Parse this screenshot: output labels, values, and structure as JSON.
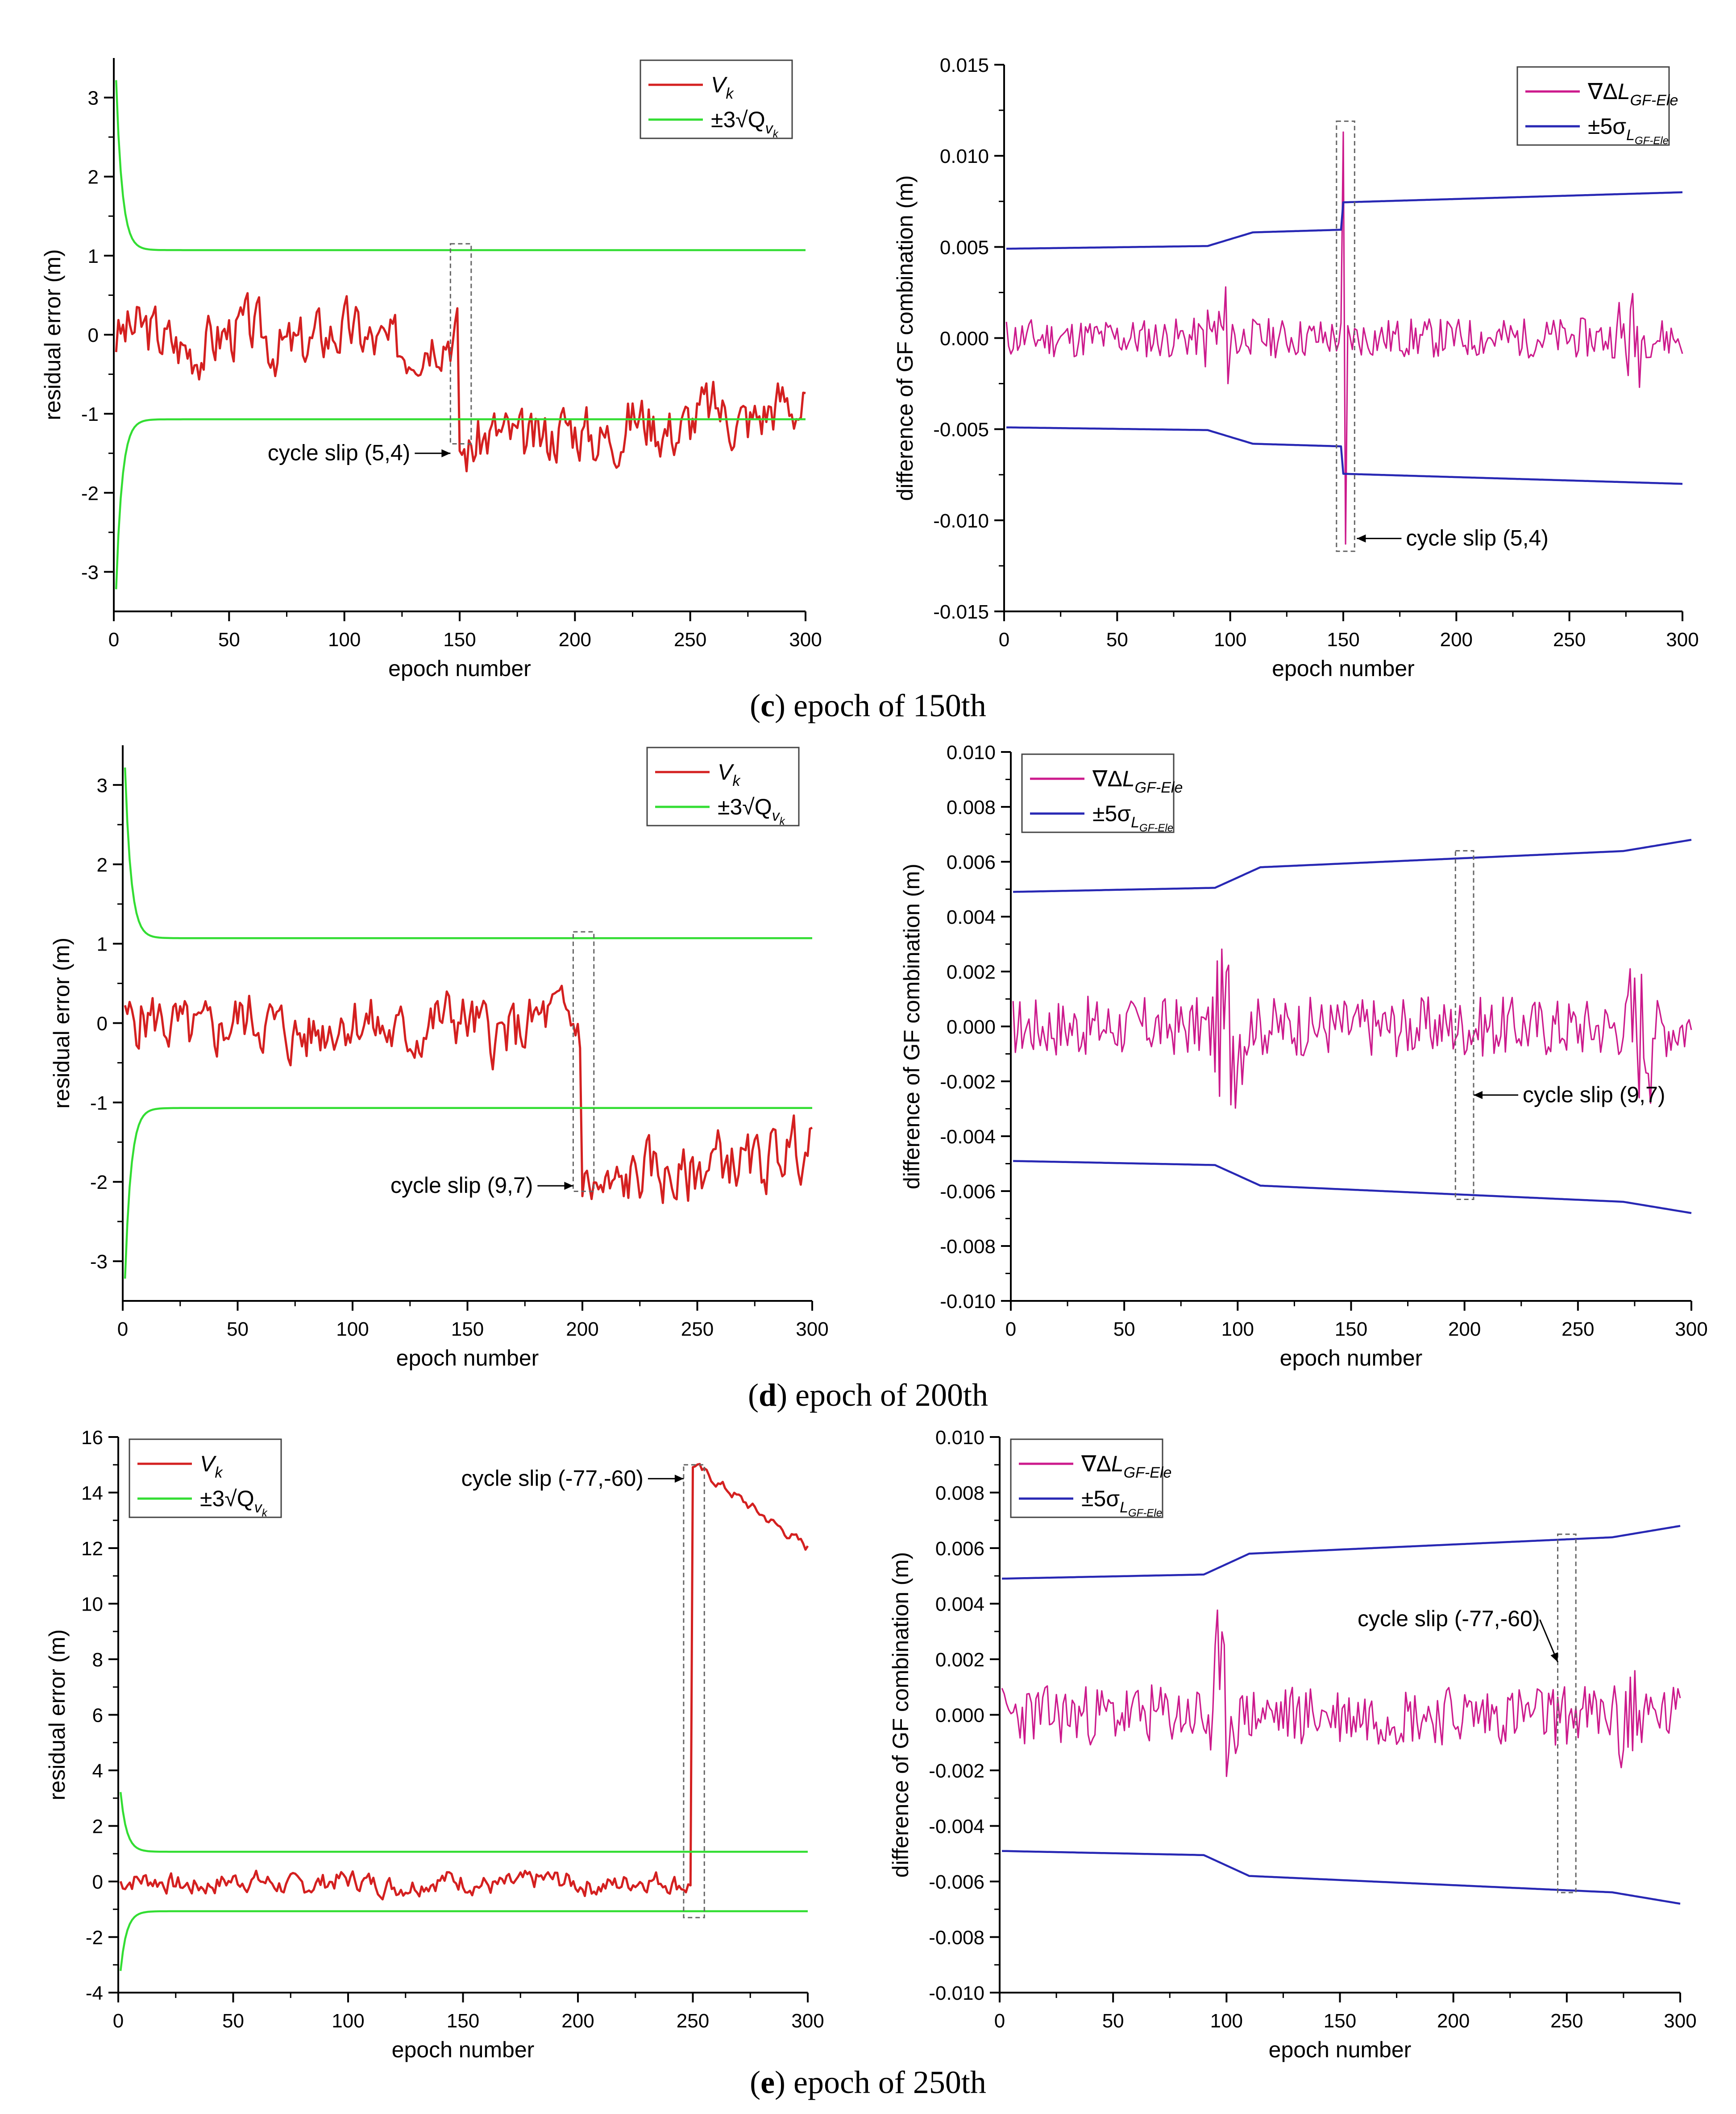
{
  "colors": {
    "red": "#d42020",
    "green": "#33dd33",
    "magenta": "#cc1a8c",
    "blue": "#2828b4"
  },
  "captions": [
    {
      "pre": "(",
      "letter": "c",
      "post": ") epoch of 150th"
    },
    {
      "pre": "(",
      "letter": "d",
      "post": ") epoch of 200th"
    },
    {
      "pre": "(",
      "letter": "e",
      "post": ") epoch of 250th"
    }
  ],
  "chart_data": [
    {
      "id": "c-left",
      "type": "line",
      "xlabel": "epoch number",
      "ylabel": "residual error (m)",
      "xlim": [
        0,
        300
      ],
      "ylim": [
        -3.5,
        3.5
      ],
      "xticks": [
        0,
        50,
        100,
        150,
        200,
        250,
        300
      ],
      "yticks": [
        -3,
        -2,
        -1,
        0,
        1,
        2,
        3
      ],
      "legend": {
        "position": "top-right",
        "entries": [
          {
            "text": "V",
            "sub": "k"
          },
          {
            "text": "±3√Q",
            "sub": "v",
            "subsub": "k"
          }
        ]
      },
      "slip_epoch": 150,
      "jump": -1.35,
      "box": {
        "x": [
          146,
          155
        ],
        "y": [
          -1.38,
          1.15
        ]
      },
      "annotation": {
        "text": "cycle slip (5,4)",
        "side": "left",
        "x": 146,
        "y": -1.5
      },
      "series": [
        {
          "name": "V_k",
          "kind": "noise",
          "color": "red",
          "base": -0.05,
          "amp": 0.55,
          "drift": -0.4,
          "seed": 3
        },
        {
          "name": "+3√Q",
          "kind": "bound",
          "color": "green",
          "sign": 1,
          "limit": 1.07,
          "extra": 2.15
        },
        {
          "name": "-3√Q",
          "kind": "bound",
          "color": "green",
          "sign": -1,
          "limit": 1.07,
          "extra": 2.15
        }
      ]
    },
    {
      "id": "c-right",
      "type": "line",
      "xlabel": "epoch number",
      "ylabel": "difference of GF combination (m)",
      "xlim": [
        0,
        300
      ],
      "ylim": [
        -0.015,
        0.015
      ],
      "xticks": [
        0,
        50,
        100,
        150,
        200,
        250,
        300
      ],
      "yticks": [
        "-0.015",
        "-0.010",
        "-0.005",
        "0.000",
        "0.005",
        "0.010",
        "0.015"
      ],
      "legend": {
        "position": "top-right",
        "entries": [
          {
            "text": "∇ΔL",
            "sub": "GF-Ele"
          },
          {
            "text": "±5σ",
            "sub": "L",
            "subsub": "GF-Ele"
          }
        ]
      },
      "slip_epoch": 150,
      "spike": 0.0113,
      "box": {
        "x": [
          147,
          155
        ],
        "y": [
          -0.0117,
          0.0119
        ]
      },
      "annotation": {
        "text": "cycle slip (5,4)",
        "side": "right",
        "x": 156,
        "y": -0.011
      },
      "series": [
        {
          "name": "∇ΔL_GF-Ele",
          "kind": "gfnoise",
          "color": "magenta",
          "amp": 0.0011,
          "burst": 0.0038,
          "seed": 11
        },
        {
          "name": "+5σ",
          "kind": "sigma",
          "color": "blue",
          "sign": 1,
          "start": 0.0049,
          "step_at": 150,
          "step": 0.0015,
          "end": 0.008
        },
        {
          "name": "-5σ",
          "kind": "sigma",
          "color": "blue",
          "sign": -1,
          "start": 0.0049,
          "step_at": 150,
          "step": 0.0015,
          "end": 0.008
        }
      ]
    },
    {
      "id": "d-left",
      "type": "line",
      "xlabel": "epoch number",
      "ylabel": "residual error (m)",
      "xlim": [
        0,
        300
      ],
      "ylim": [
        -3.5,
        3.5
      ],
      "xticks": [
        0,
        50,
        100,
        150,
        200,
        250,
        300
      ],
      "yticks": [
        -3,
        -2,
        -1,
        0,
        1,
        2,
        3
      ],
      "legend": {
        "position": "top-right",
        "entries": [
          {
            "text": "V",
            "sub": "k"
          },
          {
            "text": "±3√Q",
            "sub": "v",
            "subsub": "k"
          }
        ]
      },
      "slip_epoch": 200,
      "jump": -2.05,
      "box": {
        "x": [
          196,
          205
        ],
        "y": [
          -2.12,
          1.15
        ]
      },
      "annotation": {
        "text": "cycle slip (9,7)",
        "side": "left",
        "x": 196,
        "y": -2.05
      },
      "series": [
        {
          "name": "V_k",
          "kind": "noise",
          "color": "red",
          "base": -0.05,
          "amp": 0.55,
          "drift": 0.55,
          "seed": 5
        },
        {
          "name": "+3√Q",
          "kind": "bound",
          "color": "green",
          "sign": 1,
          "limit": 1.07,
          "extra": 2.15
        },
        {
          "name": "-3√Q",
          "kind": "bound",
          "color": "green",
          "sign": -1,
          "limit": 1.07,
          "extra": 2.15
        }
      ]
    },
    {
      "id": "d-right",
      "type": "line",
      "xlabel": "epoch number",
      "ylabel": "difference of GF combination (m)",
      "xlim": [
        0,
        300
      ],
      "ylim": [
        -0.01,
        0.01
      ],
      "xticks": [
        0,
        50,
        100,
        150,
        200,
        250,
        300
      ],
      "yticks": [
        "-0.010",
        "-0.008",
        "-0.006",
        "-0.004",
        "-0.002",
        "0.000",
        "0.002",
        "0.004",
        "0.006",
        "0.008",
        "0.010"
      ],
      "legend": {
        "position": "top-left",
        "entries": [
          {
            "text": "∇ΔL",
            "sub": "GF-Ele"
          },
          {
            "text": "±5σ",
            "sub": "L",
            "subsub": "GF-Ele"
          }
        ]
      },
      "slip_epoch": 200,
      "spike": 0,
      "box": {
        "x": [
          196,
          204
        ],
        "y": [
          -0.0063,
          0.0064
        ]
      },
      "annotation": {
        "text": "cycle slip (9,7)",
        "side": "right",
        "x": 204,
        "y": -0.0025
      },
      "series": [
        {
          "name": "∇ΔL_GF-Ele",
          "kind": "gfnoise",
          "color": "magenta",
          "amp": 0.0011,
          "burst": 0.0038,
          "seed": 17
        },
        {
          "name": "+5σ",
          "kind": "sigma",
          "color": "blue",
          "sign": 1,
          "start": 0.0049,
          "step_at": null,
          "step": 0,
          "end": 0.0065
        },
        {
          "name": "-5σ",
          "kind": "sigma",
          "color": "blue",
          "sign": -1,
          "start": 0.0049,
          "step_at": null,
          "step": 0,
          "end": 0.0065
        }
      ]
    },
    {
      "id": "e-left",
      "type": "line",
      "xlabel": "epoch number",
      "ylabel": "residual error (m)",
      "xlim": [
        0,
        300
      ],
      "ylim": [
        -4,
        16
      ],
      "xticks": [
        0,
        50,
        100,
        150,
        200,
        250,
        300
      ],
      "yticks": [
        -4,
        -2,
        0,
        2,
        4,
        6,
        8,
        10,
        12,
        14,
        16
      ],
      "legend": {
        "position": "top-left",
        "entries": [
          {
            "text": "V",
            "sub": "k"
          },
          {
            "text": "±3√Q",
            "sub": "v",
            "subsub": "k"
          }
        ]
      },
      "slip_epoch": 250,
      "jump": 15.0,
      "box": {
        "x": [
          246,
          255
        ],
        "y": [
          -1.3,
          15.0
        ]
      },
      "annotation": {
        "text": "cycle slip (-77,-60)",
        "side": "left",
        "x": 246,
        "y": 14.5
      },
      "series": [
        {
          "name": "V_k",
          "kind": "noise",
          "color": "red",
          "base": -0.05,
          "amp": 0.55,
          "drift": 0,
          "seed": 7,
          "after_decay": 12.0
        },
        {
          "name": "+3√Q",
          "kind": "bound",
          "color": "green",
          "sign": 1,
          "limit": 1.07,
          "extra": 2.15
        },
        {
          "name": "-3√Q",
          "kind": "bound",
          "color": "green",
          "sign": -1,
          "limit": 1.07,
          "extra": 2.15
        }
      ]
    },
    {
      "id": "e-right",
      "type": "line",
      "xlabel": "epoch number",
      "ylabel": "difference of GF combination (m)",
      "xlim": [
        0,
        300
      ],
      "ylim": [
        -0.01,
        0.01
      ],
      "xticks": [
        0,
        50,
        100,
        150,
        200,
        250,
        300
      ],
      "yticks": [
        "-0.010",
        "-0.008",
        "-0.006",
        "-0.004",
        "-0.002",
        "0.000",
        "0.002",
        "0.004",
        "0.006",
        "0.008",
        "0.010"
      ],
      "legend": {
        "position": "top-left",
        "entries": [
          {
            "text": "∇ΔL",
            "sub": "GF-Ele"
          },
          {
            "text": "±5σ",
            "sub": "L",
            "subsub": "GF-Ele"
          }
        ]
      },
      "slip_epoch": 250,
      "spike": 0,
      "box": {
        "x": [
          246,
          254
        ],
        "y": [
          -0.0064,
          0.0065
        ]
      },
      "annotation": {
        "text": "cycle slip (-77,-60)",
        "side": "above",
        "x": 246,
        "y": 0.0019
      },
      "series": [
        {
          "name": "∇ΔL_GF-Ele",
          "kind": "gfnoise",
          "color": "magenta",
          "amp": 0.0011,
          "burst": 0.0038,
          "seed": 23
        },
        {
          "name": "+5σ",
          "kind": "sigma",
          "color": "blue",
          "sign": 1,
          "start": 0.0049,
          "step_at": null,
          "step": 0,
          "end": 0.0065
        },
        {
          "name": "-5σ",
          "kind": "sigma",
          "color": "blue",
          "sign": -1,
          "start": 0.0049,
          "step_at": null,
          "step": 0,
          "end": 0.0065
        }
      ]
    }
  ]
}
